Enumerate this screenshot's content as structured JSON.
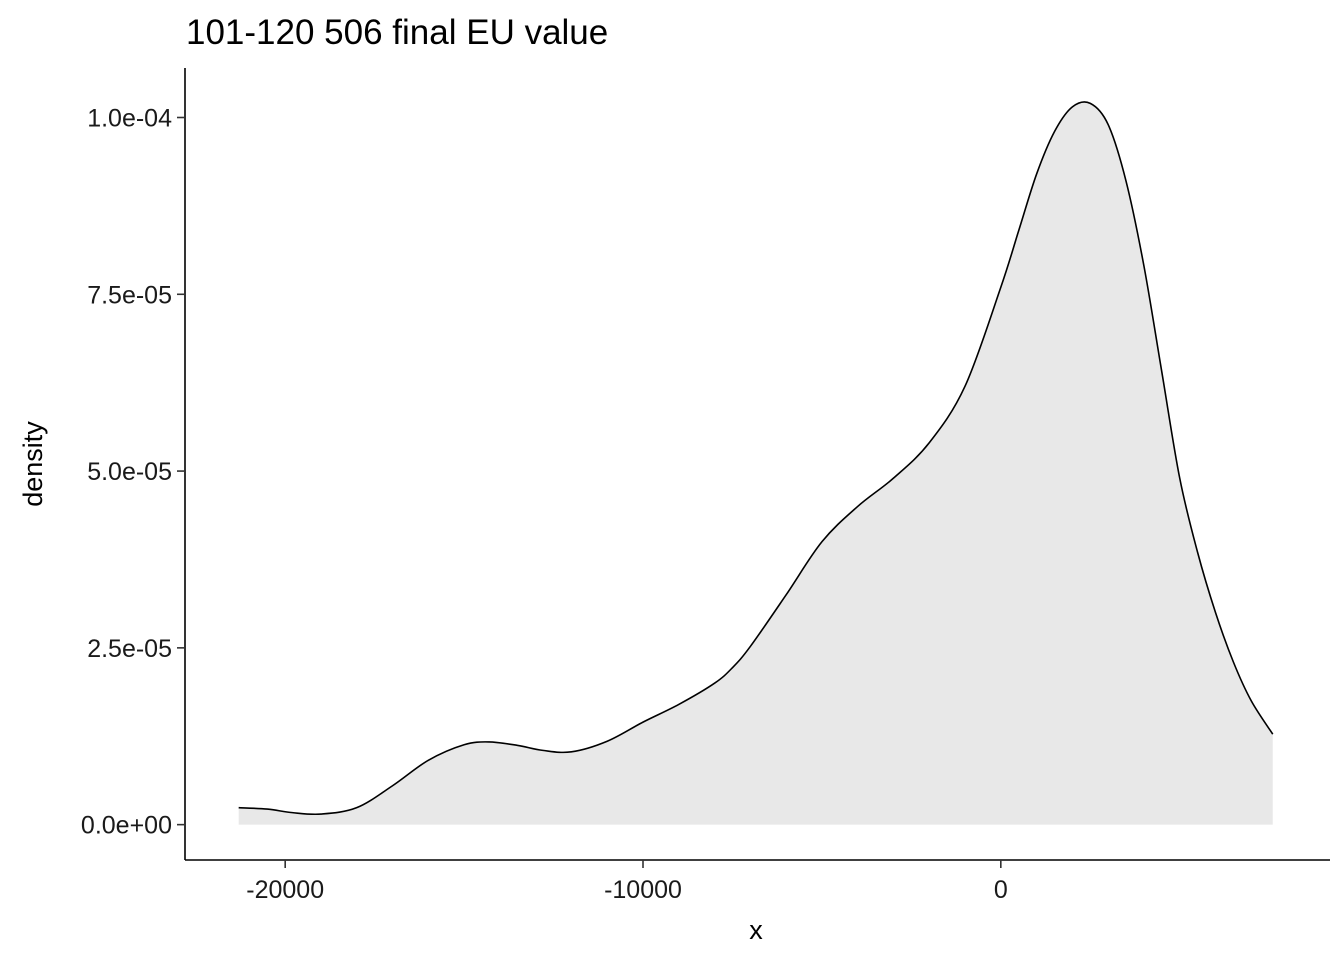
{
  "chart_data": {
    "type": "area",
    "title": "101-120 506 final EU value",
    "xlabel": "x",
    "ylabel": "density",
    "xlim": [
      -22800,
      9200
    ],
    "ylim": [
      -5e-06,
      0.000107
    ],
    "x_ticks": [
      {
        "value": -20000,
        "label": "-20000"
      },
      {
        "value": -10000,
        "label": "-10000"
      },
      {
        "value": 0,
        "label": "0"
      }
    ],
    "y_ticks": [
      {
        "value": 0,
        "label": "0.0e+00"
      },
      {
        "value": 2.5e-05,
        "label": "2.5e-05"
      },
      {
        "value": 5e-05,
        "label": "5.0e-05"
      },
      {
        "value": 7.5e-05,
        "label": "7.5e-05"
      },
      {
        "value": 0.0001,
        "label": "1.0e-04"
      }
    ],
    "grid": false,
    "legend": "none",
    "colors": {
      "fill": "#e8e8e8",
      "line": "#000000"
    },
    "series": [
      {
        "x": [
          -21300,
          -20500,
          -19800,
          -19000,
          -18000,
          -17000,
          -16000,
          -15000,
          -14300,
          -13500,
          -12800,
          -12000,
          -11000,
          -10000,
          -9000,
          -8000,
          -7500,
          -7000,
          -6000,
          -5000,
          -4000,
          -3000,
          -2000,
          -1000,
          0,
          500,
          1000,
          1500,
          2000,
          2500,
          3000,
          3500,
          4000,
          4500,
          5000,
          5500,
          6000,
          6500,
          7000,
          7600
        ],
        "y": [
          2.4e-06,
          2.2e-06,
          1.7e-06,
          1.5e-06,
          2.4e-06,
          5.5e-06,
          9.1e-06,
          1.13e-05,
          1.17e-05,
          1.12e-05,
          1.05e-05,
          1.03e-05,
          1.18e-05,
          1.45e-05,
          1.7e-05,
          2e-05,
          2.22e-05,
          2.52e-05,
          3.25e-05,
          4e-05,
          4.5e-05,
          4.9e-05,
          5.4e-05,
          6.2e-05,
          7.6e-05,
          8.4e-05,
          9.2e-05,
          9.8e-05,
          0.0001015,
          0.000102,
          9.9e-05,
          9.1e-05,
          7.9e-05,
          6.4e-05,
          4.9e-05,
          3.85e-05,
          3e-05,
          2.3e-05,
          1.75e-05,
          1.28e-05
        ]
      }
    ]
  }
}
